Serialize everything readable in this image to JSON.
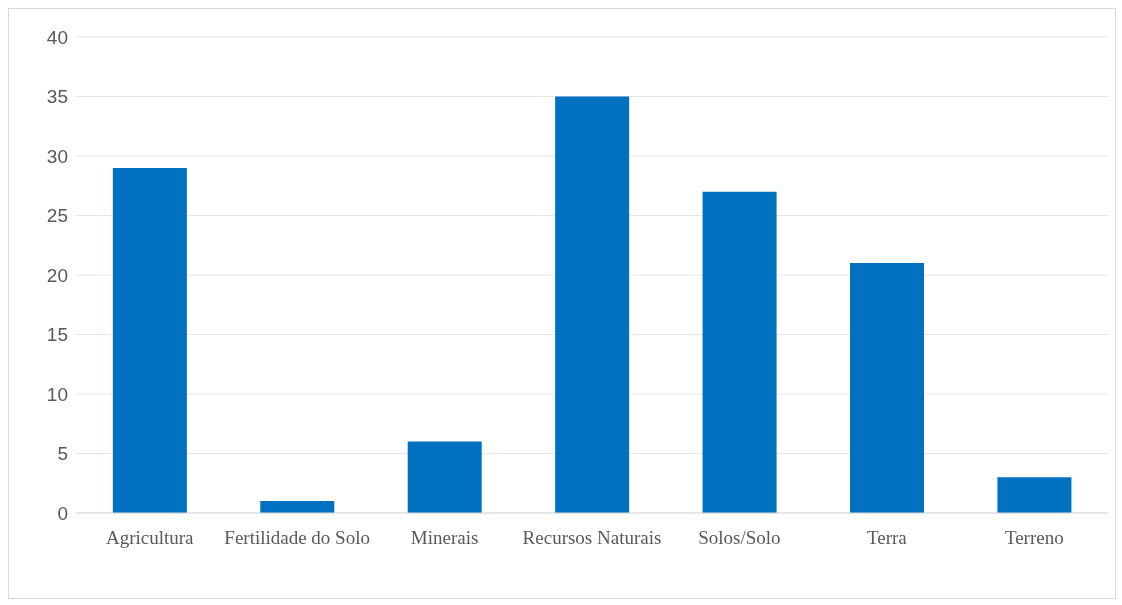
{
  "chart_data": {
    "type": "bar",
    "categories": [
      "Agricultura",
      "Fertilidade do Solo",
      "Minerais",
      "Recursos Naturais",
      "Solos/Solo",
      "Terra",
      "Terreno"
    ],
    "values": [
      29,
      1,
      6,
      35,
      27,
      21,
      3
    ],
    "color": "#0070c0",
    "ylim": [
      0,
      40
    ],
    "yticks": [
      0,
      5,
      10,
      15,
      20,
      25,
      30,
      35,
      40
    ],
    "grid": "y",
    "legend": false
  }
}
